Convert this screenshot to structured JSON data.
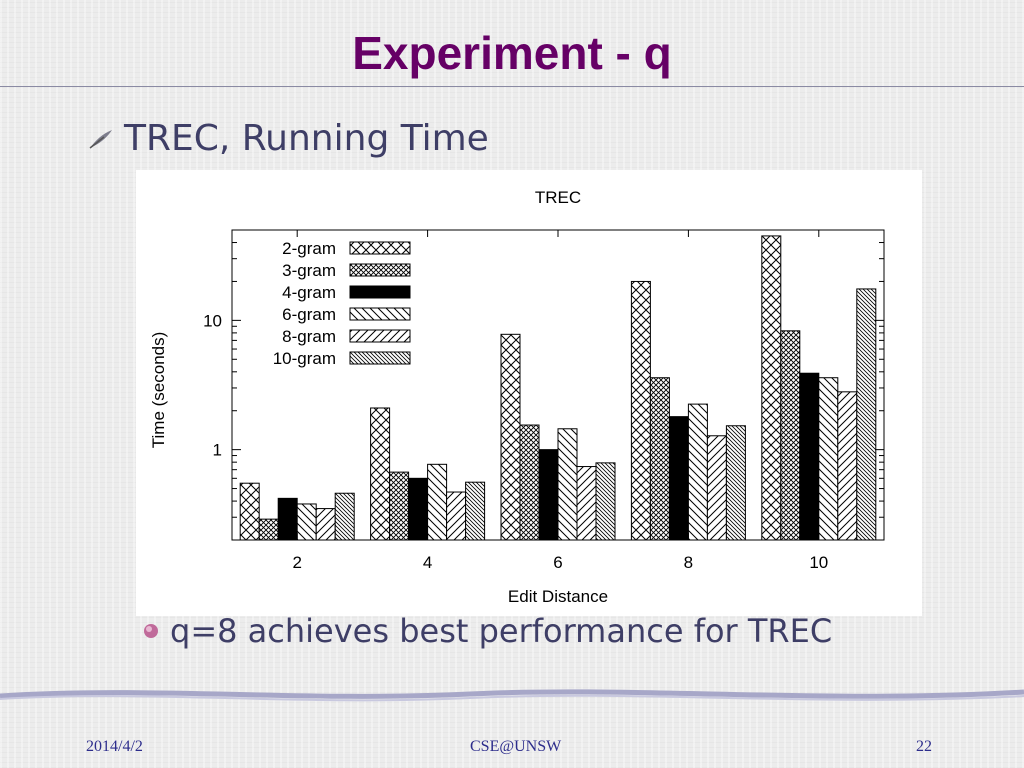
{
  "slide": {
    "title": "Experiment - q",
    "bullet_main": "TREC, Running Time",
    "bullet_sub": "q=8 achieves best performance for TREC",
    "footer_left": "2014/4/2",
    "footer_center": "CSE@UNSW",
    "footer_right": "22"
  },
  "colors": {
    "title": "#660066",
    "text": "#3e3e66",
    "footer": "#2d2d8c",
    "bar_solid": "#000000"
  },
  "chart_data": {
    "type": "bar",
    "title": "TREC",
    "xlabel": "Edit Distance",
    "ylabel": "Time (seconds)",
    "y_scale": "log",
    "ylim": [
      0.2,
      50
    ],
    "ytick_labels": [
      "1",
      "10"
    ],
    "categories": [
      "2",
      "4",
      "6",
      "8",
      "10"
    ],
    "legend_position": "top-left",
    "series": [
      {
        "name": "2-gram",
        "pattern": "crosshatch",
        "values": [
          0.55,
          2.1,
          7.8,
          20,
          45
        ]
      },
      {
        "name": "3-gram",
        "pattern": "dense-crosshatch",
        "values": [
          0.29,
          0.67,
          1.55,
          3.6,
          8.3
        ]
      },
      {
        "name": "4-gram",
        "pattern": "solid",
        "values": [
          0.42,
          0.6,
          1.0,
          1.8,
          3.9
        ]
      },
      {
        "name": "6-gram",
        "pattern": "backslash",
        "values": [
          0.38,
          0.77,
          1.45,
          2.25,
          3.6
        ]
      },
      {
        "name": "8-gram",
        "pattern": "slash",
        "values": [
          0.35,
          0.47,
          0.74,
          1.28,
          2.8
        ]
      },
      {
        "name": "10-gram",
        "pattern": "dense-backslash",
        "values": [
          0.46,
          0.56,
          0.79,
          1.53,
          17.5
        ]
      }
    ]
  }
}
